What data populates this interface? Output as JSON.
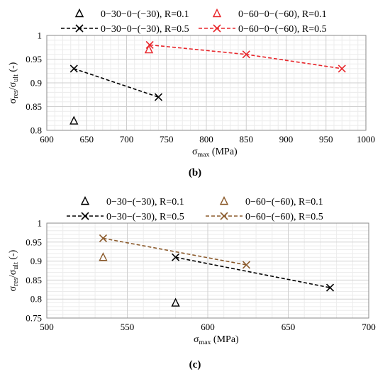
{
  "figure": {
    "panels": [
      {
        "label": "(b)",
        "chart_data": {
          "type": "scatter",
          "xlabel_main": "σ",
          "xlabel_sub": "max",
          "xlabel_unit": " (MPa)",
          "ylabel_num_main": "σ",
          "ylabel_num_sub": "res",
          "ylabel_den_main": "σ",
          "ylabel_den_sub": "ult",
          "ylabel_unit": " (-)",
          "xlim": [
            600,
            1000
          ],
          "ylim": [
            0.8,
            1.0
          ],
          "xticks": [
            600,
            650,
            700,
            750,
            800,
            850,
            900,
            950,
            1000
          ],
          "yticks": [
            0.8,
            0.85,
            0.9,
            0.95,
            1.0
          ],
          "ytick_labels": [
            "0.8",
            "0.85",
            "0.9",
            "0.95",
            "1"
          ],
          "grid": true,
          "legend_position": "top",
          "series": [
            {
              "name": "0−30−0−(−30), R=0.1",
              "marker": "triangle",
              "color": "#000000",
              "line": false,
              "x": [
                634
              ],
              "y": [
                0.82
              ]
            },
            {
              "name": "0−60−0−(−60), R=0.1",
              "marker": "triangle",
              "color": "#e8262b",
              "line": false,
              "x": [
                728
              ],
              "y": [
                0.97
              ]
            },
            {
              "name": "0−30−0−(−30), R=0.5",
              "marker": "x",
              "color": "#000000",
              "line": true,
              "x": [
                634,
                740
              ],
              "y": [
                0.93,
                0.87
              ]
            },
            {
              "name": "0−60−0−(−60), R=0.5",
              "marker": "x",
              "color": "#e8262b",
              "line": true,
              "x": [
                729,
                850,
                970
              ],
              "y": [
                0.98,
                0.96,
                0.93
              ]
            }
          ]
        }
      },
      {
        "label": "(c)",
        "chart_data": {
          "type": "scatter",
          "xlabel_main": "σ",
          "xlabel_sub": "max",
          "xlabel_unit": " (MPa)",
          "ylabel_num_main": "σ",
          "ylabel_num_sub": "res",
          "ylabel_den_main": "σ",
          "ylabel_den_sub": "ult",
          "ylabel_unit": " (-)",
          "xlim": [
            500,
            700
          ],
          "ylim": [
            0.75,
            1.0
          ],
          "xticks": [
            500,
            550,
            600,
            650,
            700
          ],
          "yticks": [
            0.75,
            0.8,
            0.85,
            0.9,
            0.95,
            1.0
          ],
          "ytick_labels": [
            "0.75",
            "0.8",
            "0.85",
            "0.9",
            "0.95",
            "1"
          ],
          "grid": true,
          "legend_position": "top",
          "series": [
            {
              "name": "0−30−(−30), R=0.1",
              "marker": "triangle",
              "color": "#000000",
              "line": false,
              "x": [
                580
              ],
              "y": [
                0.79
              ]
            },
            {
              "name": "0−60−(−60), R=0.1",
              "marker": "triangle",
              "color": "#8b5a2b",
              "line": false,
              "x": [
                535
              ],
              "y": [
                0.91
              ]
            },
            {
              "name": "0−30−(−30), R=0.5",
              "marker": "x",
              "color": "#000000",
              "line": true,
              "x": [
                580,
                676
              ],
              "y": [
                0.91,
                0.83
              ]
            },
            {
              "name": "0−60−(−60), R=0.5",
              "marker": "x",
              "color": "#8b5a2b",
              "line": true,
              "x": [
                535,
                624
              ],
              "y": [
                0.96,
                0.89
              ]
            }
          ]
        }
      }
    ]
  }
}
